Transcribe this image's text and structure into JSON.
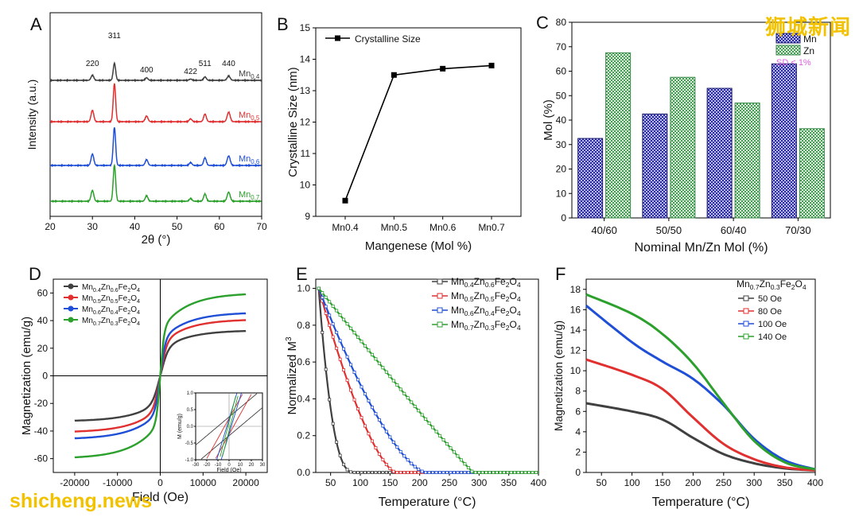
{
  "watermarks": {
    "top": "狮城新闻",
    "bottom": "shicheng.news"
  },
  "chart_data": [
    {
      "panel": "A",
      "type": "line",
      "xlabel": "2θ (°)",
      "ylabel": "Intensity (a.u.)",
      "xlim": [
        20,
        70
      ],
      "xticks": [
        20,
        30,
        40,
        50,
        60,
        70
      ],
      "peaks": [
        {
          "label": "220",
          "x": 30.0
        },
        {
          "label": "311",
          "x": 35.2
        },
        {
          "label": "400",
          "x": 42.8
        },
        {
          "label": "422",
          "x": 53.2
        },
        {
          "label": "511",
          "x": 56.6
        },
        {
          "label": "440",
          "x": 62.2
        }
      ],
      "series": [
        {
          "name": "Mn0.7",
          "label_base": "Mn",
          "label_sub": "0.7",
          "color": "#2ca02c",
          "offset": 3,
          "scale": 0.95
        },
        {
          "name": "Mn0.6",
          "label_base": "Mn",
          "label_sub": "0.6",
          "color": "#1f4fd6",
          "offset": 2,
          "scale": 1.0
        },
        {
          "name": "Mn0.5",
          "label_base": "Mn",
          "label_sub": "0.5",
          "color": "#e03030",
          "offset": 1,
          "scale": 1.0
        },
        {
          "name": "Mn0.4",
          "label_base": "Mn",
          "label_sub": "0.4",
          "color": "#404040",
          "offset": 0,
          "scale": 0.45
        }
      ]
    },
    {
      "panel": "B",
      "type": "line",
      "categories": [
        "Mn0.4",
        "Mn0.5",
        "Mn0.6",
        "Mn0.7"
      ],
      "series": [
        {
          "name": "Crystalline Size",
          "values": [
            9.5,
            13.5,
            13.7,
            13.8
          ]
        }
      ],
      "xlabel": "Mangenese (Mol %)",
      "ylabel": "Crystalline Size (nm)",
      "ylim": [
        9,
        15
      ],
      "yticks": [
        9,
        10,
        11,
        12,
        13,
        14,
        15
      ]
    },
    {
      "panel": "C",
      "type": "bar",
      "categories": [
        "40/60",
        "50/50",
        "60/40",
        "70/30"
      ],
      "series": [
        {
          "name": "Mn",
          "values": [
            32.5,
            42.5,
            53,
            63
          ],
          "color": "#2a2a9a"
        },
        {
          "name": "Zn",
          "values": [
            67.5,
            57.5,
            47,
            36.5
          ],
          "color": "#7fc08f"
        }
      ],
      "legend_note": "SD < 1%",
      "xlabel": "Nominal Mn/Zn Mol (%)",
      "ylabel": "Mol (%)",
      "ylim": [
        0,
        80
      ],
      "yticks": [
        0,
        10,
        20,
        30,
        40,
        50,
        60,
        70,
        80
      ]
    },
    {
      "panel": "D",
      "type": "line",
      "xlabel": "Field (Oe)",
      "ylabel": "Magnetization (emu/g)",
      "xlim": [
        -25000,
        25000
      ],
      "ylim": [
        -70,
        70
      ],
      "xticks": [
        -20000,
        -10000,
        0,
        10000,
        20000
      ],
      "yticks": [
        -60,
        -40,
        -20,
        0,
        20,
        40,
        60
      ],
      "series": [
        {
          "name": "Mn0.4Zn0.6Fe2O4",
          "ms": 33,
          "color": "#404040",
          "label_parts": [
            "Mn",
            "0.4",
            "Zn",
            "0.6",
            "Fe",
            "2",
            "O",
            "4"
          ]
        },
        {
          "name": "Mn0.5Zn0.5Fe2O4",
          "ms": 41,
          "color": "#e03030",
          "label_parts": [
            "Mn",
            "0.5",
            "Zn",
            "0.5",
            "Fe",
            "2",
            "O",
            "4"
          ]
        },
        {
          "name": "Mn0.6Zn0.4Fe2O4",
          "ms": 46,
          "color": "#1f4fd6",
          "label_parts": [
            "Mn",
            "0.6",
            "Zn",
            "0.4",
            "Fe",
            "2",
            "O",
            "4"
          ]
        },
        {
          "name": "Mn0.7Zn0.3Fe2O4",
          "ms": 60,
          "color": "#2ca02c",
          "label_parts": [
            "Mn",
            "0.7",
            "Zn",
            "0.3",
            "Fe",
            "2",
            "O",
            "4"
          ]
        }
      ],
      "inset": {
        "xlabel": "Field (Oe)",
        "ylabel": "M (emu/g)",
        "xlim": [
          -30,
          30
        ],
        "ylim": [
          -1.0,
          1.0
        ],
        "xticks": [
          -30,
          -20,
          -10,
          0,
          10,
          20,
          30
        ],
        "yticks": [
          -1.0,
          -0.5,
          0.0,
          0.5,
          1.0
        ]
      }
    },
    {
      "panel": "E",
      "type": "line",
      "xlabel": "Temperature (°C)",
      "ylabel": "Normalized M",
      "ylabel_sup": "3",
      "xlim": [
        25,
        400
      ],
      "ylim": [
        0,
        1.05
      ],
      "xticks": [
        50,
        100,
        150,
        200,
        250,
        300,
        350,
        400
      ],
      "yticks": [
        0.0,
        0.2,
        0.4,
        0.6,
        0.8,
        1.0
      ],
      "series": [
        {
          "name": "Mn0.4Zn0.6Fe2O4",
          "tc": 90,
          "color": "#404040",
          "label_parts": [
            "Mn",
            "0.4",
            "Zn",
            "0.6",
            "Fe",
            "2",
            "O",
            "4"
          ]
        },
        {
          "name": "Mn0.5Zn0.5Fe2O4",
          "tc": 160,
          "color": "#e03030",
          "label_parts": [
            "Mn",
            "0.5",
            "Zn",
            "0.5",
            "Fe",
            "2",
            "O",
            "4"
          ]
        },
        {
          "name": "Mn0.6Zn0.4Fe2O4",
          "tc": 210,
          "color": "#1f4fd6",
          "label_parts": [
            "Mn",
            "0.6",
            "Zn",
            "0.4",
            "Fe",
            "2",
            "O",
            "4"
          ]
        },
        {
          "name": "Mn0.7Zn0.3Fe2O4",
          "tc": 290,
          "color": "#2ca02c",
          "label_parts": [
            "Mn",
            "0.7",
            "Zn",
            "0.3",
            "Fe",
            "2",
            "O",
            "4"
          ]
        }
      ]
    },
    {
      "panel": "F",
      "type": "line",
      "title_parts": [
        "Mn",
        "0.7",
        "Zn",
        "0.3",
        "Fe",
        "2",
        "O",
        "4"
      ],
      "xlabel": "Temperature (°C)",
      "ylabel": "Magnetization (emu/g)",
      "xlim": [
        25,
        400
      ],
      "ylim": [
        0,
        19
      ],
      "xticks": [
        50,
        100,
        150,
        200,
        250,
        300,
        350,
        400
      ],
      "yticks": [
        0,
        2,
        4,
        6,
        8,
        10,
        12,
        14,
        16,
        18
      ],
      "series": [
        {
          "name": "50 Oe",
          "color": "#404040",
          "points": [
            [
              25,
              6.8
            ],
            [
              100,
              6.0
            ],
            [
              150,
              5.2
            ],
            [
              200,
              3.4
            ],
            [
              250,
              1.8
            ],
            [
              300,
              0.9
            ],
            [
              350,
              0.4
            ],
            [
              400,
              0.2
            ]
          ]
        },
        {
          "name": "80 Oe",
          "color": "#e03030",
          "points": [
            [
              25,
              11.1
            ],
            [
              100,
              9.6
            ],
            [
              150,
              8.2
            ],
            [
              200,
              5.4
            ],
            [
              250,
              2.8
            ],
            [
              300,
              1.3
            ],
            [
              350,
              0.5
            ],
            [
              400,
              0.2
            ]
          ]
        },
        {
          "name": "100 Oe",
          "color": "#1f4fd6",
          "points": [
            [
              25,
              16.4
            ],
            [
              100,
              12.8
            ],
            [
              150,
              10.9
            ],
            [
              200,
              9.2
            ],
            [
              250,
              6.6
            ],
            [
              300,
              3.3
            ],
            [
              350,
              1.2
            ],
            [
              400,
              0.3
            ]
          ]
        },
        {
          "name": "140 Oe",
          "color": "#2ca02c",
          "points": [
            [
              25,
              17.5
            ],
            [
              100,
              15.6
            ],
            [
              150,
              13.6
            ],
            [
              200,
              10.7
            ],
            [
              250,
              6.8
            ],
            [
              300,
              3.1
            ],
            [
              350,
              1.0
            ],
            [
              400,
              0.3
            ]
          ]
        }
      ]
    }
  ]
}
